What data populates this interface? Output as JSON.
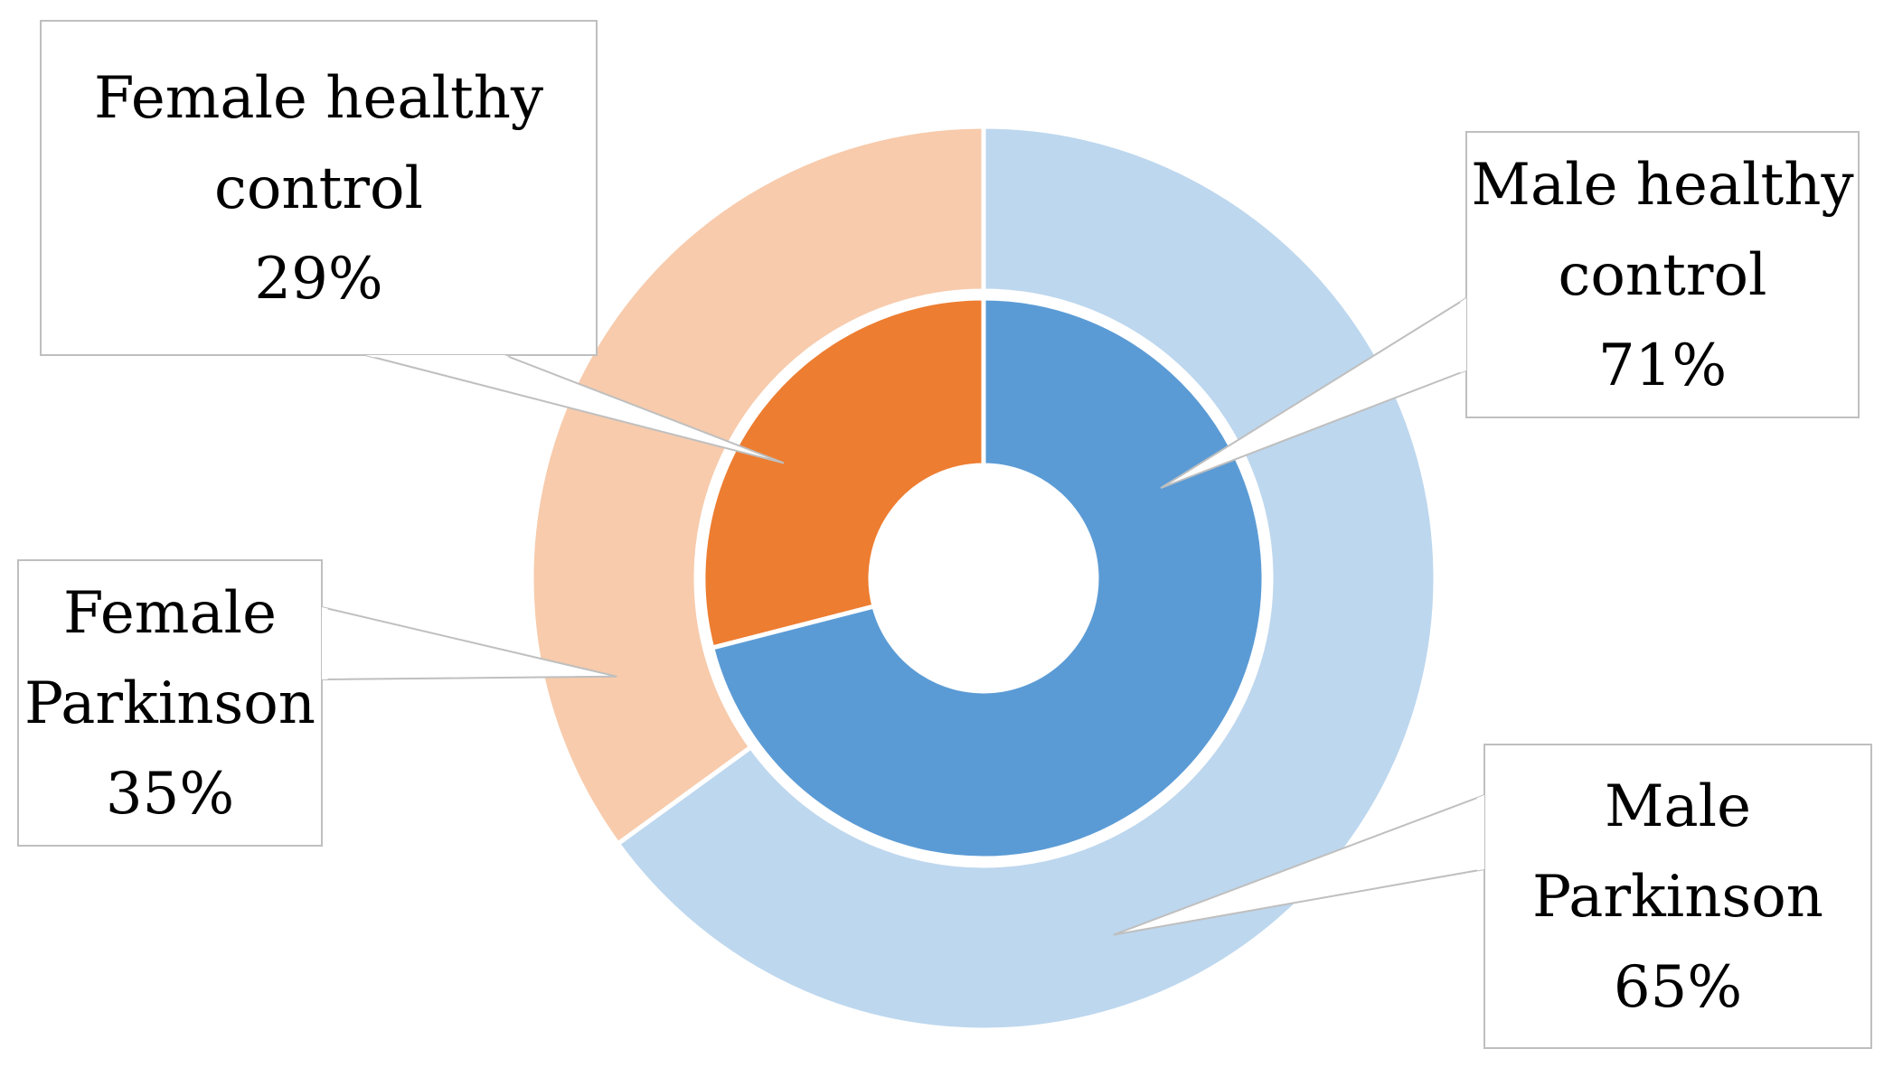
{
  "chart_data": {
    "type": "pie",
    "variant": "nested-donut",
    "title": "",
    "rings": [
      {
        "name": "",
        "position": "outer",
        "slices": [
          {
            "label_lines": [
              "Female",
              "Parkinson"
            ],
            "value_label": "35%",
            "value": 35,
            "color": "#F7CBAC"
          },
          {
            "label_lines": [
              "Male",
              "Parkinson"
            ],
            "value_label": "65%",
            "value": 65,
            "color": "#BDD7EE"
          }
        ]
      },
      {
        "name": "",
        "position": "inner",
        "slices": [
          {
            "label_lines": [
              "Female healthy",
              "control"
            ],
            "value_label": "29%",
            "value": 29,
            "color": "#ED7D31"
          },
          {
            "label_lines": [
              "Male healthy",
              "control"
            ],
            "value_label": "71%",
            "value": 71,
            "color": "#5B9BD5"
          }
        ]
      }
    ],
    "legend": "none",
    "callout_style": {
      "border": "#BFBFBF",
      "text": "#000000"
    }
  }
}
